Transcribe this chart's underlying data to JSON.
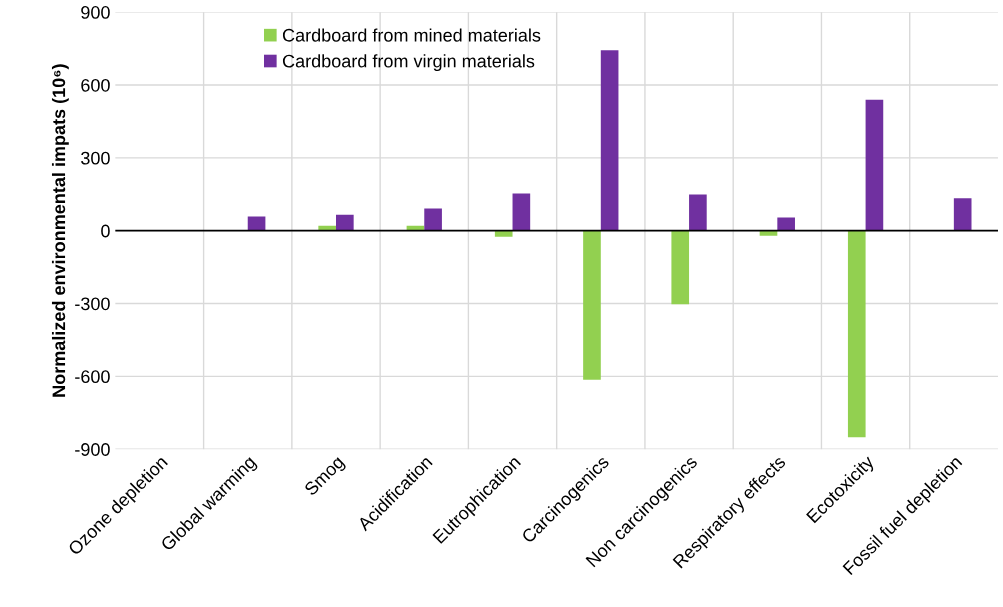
{
  "chart_data": {
    "type": "bar",
    "ylabel": "Normalized environmental impats (10⁶)",
    "categories": [
      "Ozone depletion",
      "Global warming",
      "Smog",
      "Acidification",
      "Eutrophication",
      "Carcinogenics",
      "Non carcinogenics",
      "Respiratory effects",
      "Ecotoxicity",
      "Fossil fuel depletion"
    ],
    "series": [
      {
        "name": "Cardboard from mined materials",
        "color": "#92d050",
        "values": [
          0,
          2,
          20,
          20,
          -25,
          -614,
          -303,
          -21,
          -851,
          0
        ]
      },
      {
        "name": "Cardboard from virgin materials",
        "color": "#7030a0",
        "values": [
          0,
          58,
          66,
          91,
          153,
          743,
          149,
          54,
          539,
          133
        ]
      }
    ],
    "ylim": [
      -900,
      900
    ],
    "yticks": [
      -900,
      -600,
      -300,
      0,
      300,
      600,
      900
    ],
    "grid": true,
    "legend": "top left"
  }
}
